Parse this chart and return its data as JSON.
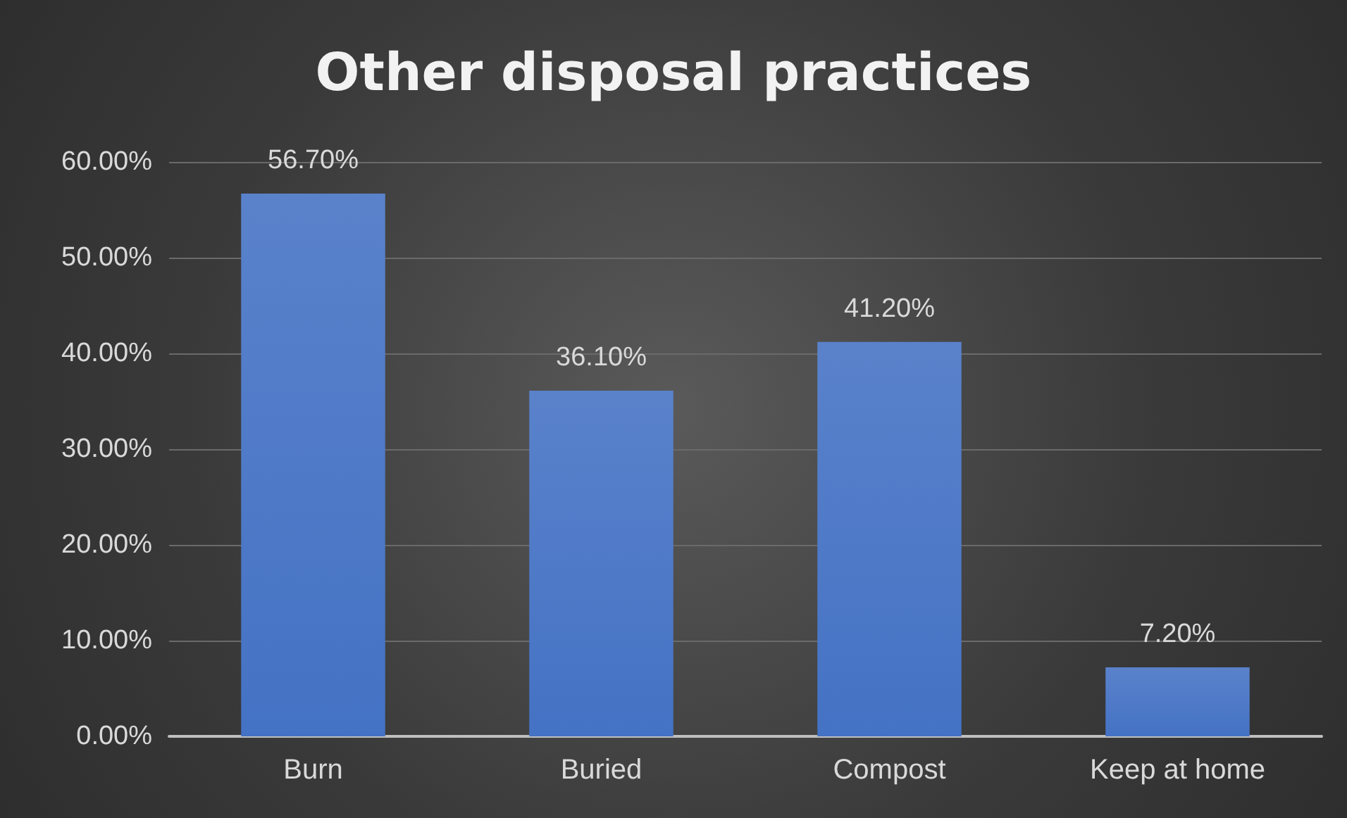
{
  "chart_data": {
    "type": "bar",
    "title": "Other disposal practices",
    "categories": [
      "Burn",
      "Buried",
      "Compost",
      "Keep at home"
    ],
    "values": [
      56.7,
      36.1,
      41.2,
      7.2
    ],
    "value_labels": [
      "56.70%",
      "36.10%",
      "41.20%",
      "7.20%"
    ],
    "color": "#4472c4",
    "ylim": [
      0,
      60
    ],
    "yticks": [
      {
        "value": 0,
        "label": "0.00%"
      },
      {
        "value": 10,
        "label": "10.00%"
      },
      {
        "value": 20,
        "label": "20.00%"
      },
      {
        "value": 30,
        "label": "30.00%"
      },
      {
        "value": 40,
        "label": "40.00%"
      },
      {
        "value": 50,
        "label": "50.00%"
      },
      {
        "value": 60,
        "label": "60.00%"
      }
    ],
    "grid": "y"
  }
}
